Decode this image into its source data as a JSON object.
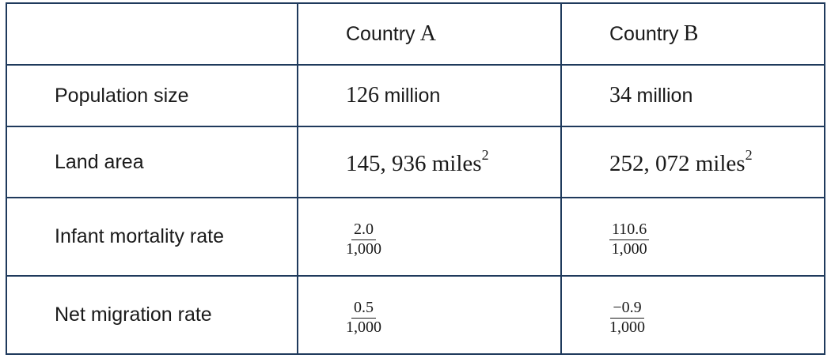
{
  "table": {
    "header": {
      "country_a_word": "Country",
      "country_a_letter": "A",
      "country_b_word": "Country",
      "country_b_letter": "B"
    },
    "rows": [
      {
        "label": "Population size",
        "a_number": "126",
        "a_unit": "million",
        "b_number": "34",
        "b_unit": "million"
      },
      {
        "label": "Land area",
        "a_value": "145, 936 miles",
        "a_exponent": "2",
        "b_value": "252, 072 miles",
        "b_exponent": "2"
      },
      {
        "label": "Infant mortality rate",
        "a_numerator": "2.0",
        "a_denominator": "1,000",
        "b_numerator": "110.6",
        "b_denominator": "1,000"
      },
      {
        "label": "Net migration rate",
        "a_numerator": "0.5",
        "a_denominator": "1,000",
        "b_numerator": "−0.9",
        "b_denominator": "1,000"
      }
    ]
  }
}
